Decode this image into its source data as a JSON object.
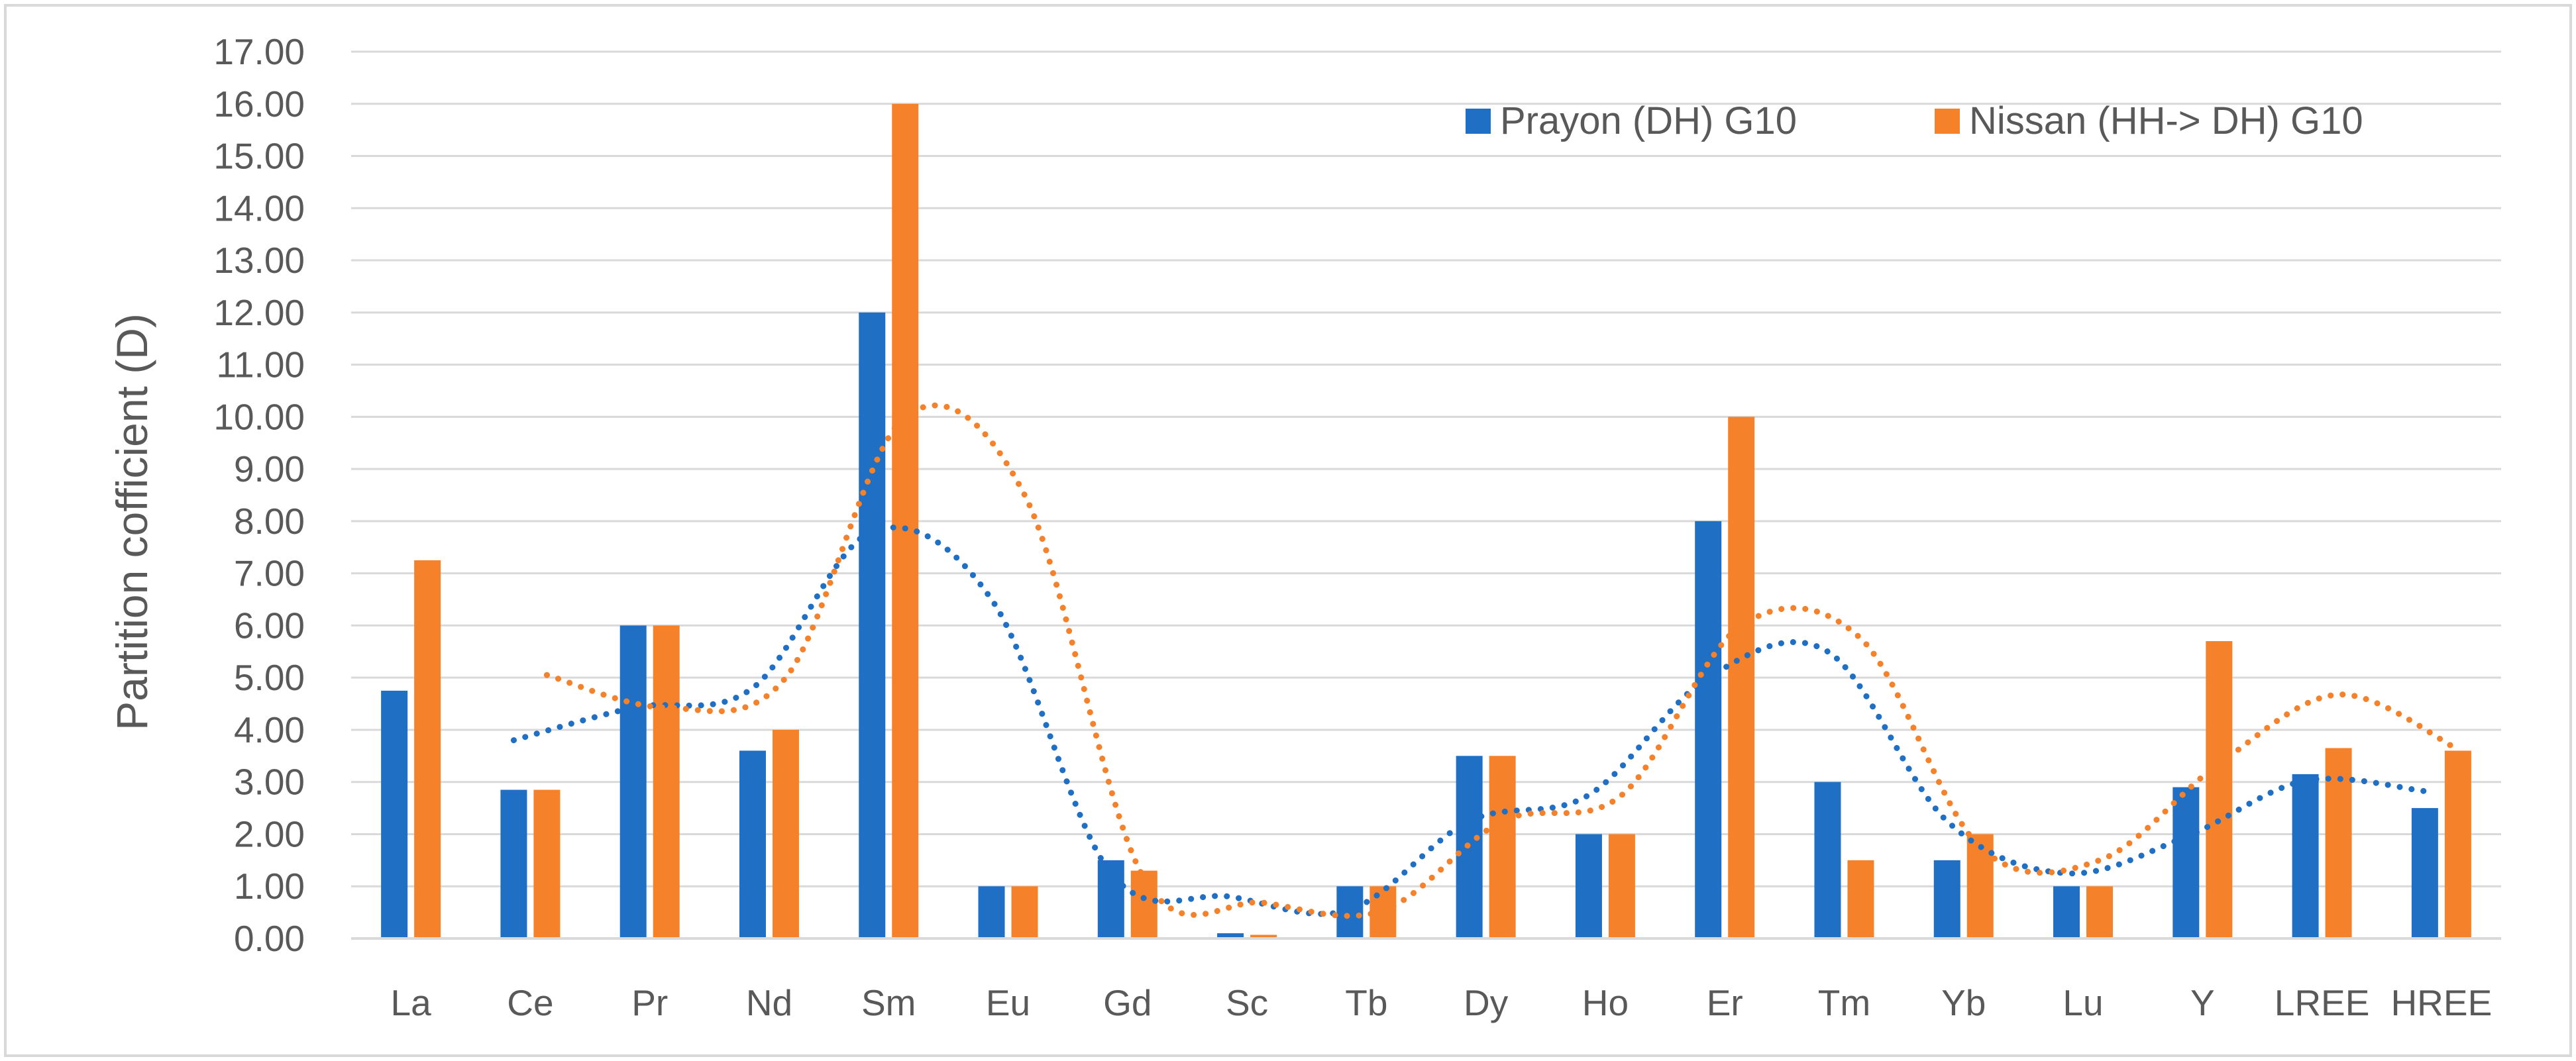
{
  "chart_data": {
    "type": "bar",
    "title": "",
    "xlabel": "",
    "ylabel": "Partition cofficient (D)",
    "ylim": [
      0,
      17
    ],
    "ytick_step": 1,
    "ytick_decimals": 2,
    "grid": true,
    "legend_position": "top-right",
    "categories": [
      "La",
      "Ce",
      "Pr",
      "Nd",
      "Sm",
      "Eu",
      "Gd",
      "Sc",
      "Tb",
      "Dy",
      "Ho",
      "Er",
      "Tm",
      "Yb",
      "Lu",
      "Y",
      "LREE",
      "HREE"
    ],
    "series": [
      {
        "name": "Prayon (DH) G10",
        "color": "#1f6fc5",
        "values": [
          4.75,
          2.85,
          6.0,
          3.6,
          12.0,
          1.0,
          1.5,
          0.1,
          1.0,
          3.5,
          2.0,
          8.0,
          3.0,
          1.5,
          1.0,
          2.9,
          3.15,
          2.5
        ],
        "trendline": {
          "style": "dotted",
          "type": "moving-average",
          "period": 2
        }
      },
      {
        "name": "Nissan (HH-> DH) G10",
        "color": "#f5822a",
        "values": [
          7.25,
          2.85,
          6.0,
          4.0,
          16.0,
          1.0,
          1.3,
          0.07,
          1.0,
          3.5,
          2.0,
          10.0,
          1.5,
          2.0,
          1.0,
          5.7,
          3.65,
          3.6
        ],
        "trendline": {
          "style": "dotted",
          "type": "moving-average",
          "period": 2
        }
      }
    ]
  }
}
